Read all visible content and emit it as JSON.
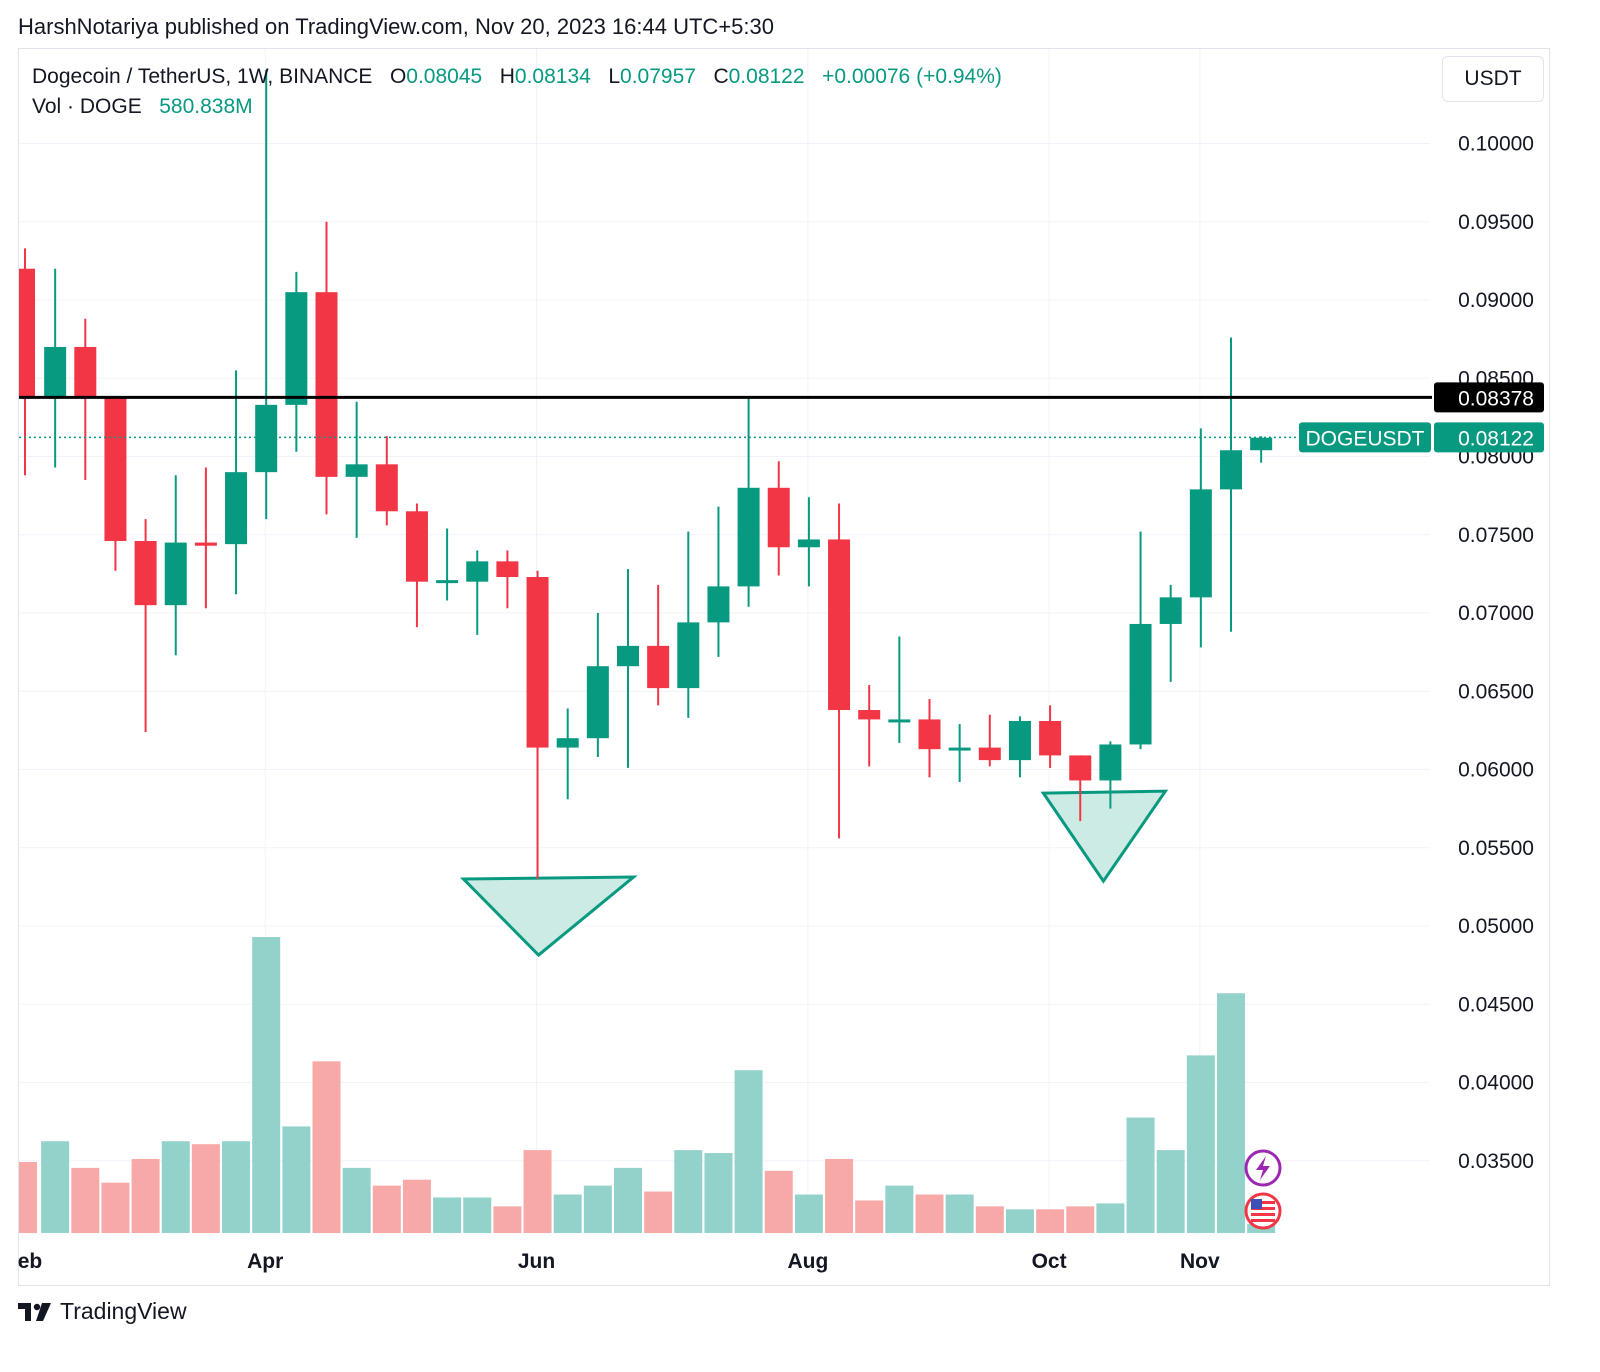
{
  "published_line": "HarshNotariya published on TradingView.com, Nov 20, 2023 16:44 UTC+5:30",
  "legend": {
    "symbol": "Dogecoin / TetherUS, 1W, BINANCE",
    "o_label": "O",
    "o_value": "0.08045",
    "h_label": "H",
    "h_value": "0.08134",
    "l_label": "L",
    "l_value": "0.07957",
    "c_label": "C",
    "c_value": "0.08122",
    "change": "+0.00076 (+0.94%)",
    "vol_label": "Vol · DOGE",
    "vol_value": "580.838M"
  },
  "currency_button": "USDT",
  "footer_brand": "TradingView",
  "colors": {
    "up": "#089981",
    "down": "#f23645",
    "vol_up": "#92d2cb",
    "vol_down": "#f7a9a7",
    "grid": "#f0f3fa",
    "triangle_fill": "#cdebe5",
    "triangle_stroke": "#089981",
    "resistance_line": "#000000"
  },
  "chart_data": {
    "type": "candlestick",
    "symbol": "DOGEUSDT",
    "interval": "1W",
    "y_axis_ticks": [
      "0.10000",
      "0.09500",
      "0.09000",
      "0.08500",
      "0.08000",
      "0.07500",
      "0.07000",
      "0.06500",
      "0.06000",
      "0.05500",
      "0.05000",
      "0.04500",
      "0.04000",
      "0.03500"
    ],
    "ylim": [
      0.0305,
      0.1047
    ],
    "x_month_labels": [
      {
        "label": "eb",
        "index": 0
      },
      {
        "label": "Apr",
        "index": 8
      },
      {
        "label": "Jun",
        "index": 17
      },
      {
        "label": "Aug",
        "index": 26
      },
      {
        "label": "Oct",
        "index": 34
      },
      {
        "label": "Nov",
        "index": 39
      }
    ],
    "candles": [
      {
        "o": 0.092,
        "h": 0.0933,
        "l": 0.0788,
        "c": 0.0838
      },
      {
        "o": 0.0838,
        "h": 0.092,
        "l": 0.0793,
        "c": 0.087
      },
      {
        "o": 0.087,
        "h": 0.0888,
        "l": 0.0785,
        "c": 0.0838
      },
      {
        "o": 0.0838,
        "h": 0.0832,
        "l": 0.0727,
        "c": 0.0746
      },
      {
        "o": 0.0746,
        "h": 0.076,
        "l": 0.0624,
        "c": 0.0705
      },
      {
        "o": 0.0705,
        "h": 0.0788,
        "l": 0.0673,
        "c": 0.0745
      },
      {
        "o": 0.0745,
        "h": 0.0793,
        "l": 0.0703,
        "c": 0.0743
      },
      {
        "o": 0.0744,
        "h": 0.0855,
        "l": 0.0712,
        "c": 0.079
      },
      {
        "o": 0.079,
        "h": 0.1047,
        "l": 0.076,
        "c": 0.0833
      },
      {
        "o": 0.0833,
        "h": 0.0918,
        "l": 0.0803,
        "c": 0.0905
      },
      {
        "o": 0.0905,
        "h": 0.095,
        "l": 0.0763,
        "c": 0.0787
      },
      {
        "o": 0.0787,
        "h": 0.0835,
        "l": 0.0748,
        "c": 0.0795
      },
      {
        "o": 0.0795,
        "h": 0.0813,
        "l": 0.0756,
        "c": 0.0765
      },
      {
        "o": 0.0765,
        "h": 0.077,
        "l": 0.0691,
        "c": 0.072
      },
      {
        "o": 0.072,
        "h": 0.0754,
        "l": 0.0708,
        "c": 0.0721
      },
      {
        "o": 0.072,
        "h": 0.074,
        "l": 0.0686,
        "c": 0.0733
      },
      {
        "o": 0.0733,
        "h": 0.074,
        "l": 0.0703,
        "c": 0.0723
      },
      {
        "o": 0.0723,
        "h": 0.0727,
        "l": 0.053,
        "c": 0.0614
      },
      {
        "o": 0.0614,
        "h": 0.0639,
        "l": 0.0581,
        "c": 0.062
      },
      {
        "o": 0.062,
        "h": 0.07,
        "l": 0.0608,
        "c": 0.0666
      },
      {
        "o": 0.0666,
        "h": 0.0728,
        "l": 0.0601,
        "c": 0.0679
      },
      {
        "o": 0.0679,
        "h": 0.0718,
        "l": 0.0641,
        "c": 0.0652
      },
      {
        "o": 0.0652,
        "h": 0.0752,
        "l": 0.0633,
        "c": 0.0694
      },
      {
        "o": 0.0694,
        "h": 0.0768,
        "l": 0.0672,
        "c": 0.0717
      },
      {
        "o": 0.0717,
        "h": 0.0838,
        "l": 0.0704,
        "c": 0.078
      },
      {
        "o": 0.078,
        "h": 0.0797,
        "l": 0.0724,
        "c": 0.0742
      },
      {
        "o": 0.0742,
        "h": 0.0774,
        "l": 0.0717,
        "c": 0.0747
      },
      {
        "o": 0.0747,
        "h": 0.077,
        "l": 0.0556,
        "c": 0.0638
      },
      {
        "o": 0.0638,
        "h": 0.0654,
        "l": 0.0602,
        "c": 0.0632
      },
      {
        "o": 0.0632,
        "h": 0.0685,
        "l": 0.0617,
        "c": 0.0632
      },
      {
        "o": 0.0632,
        "h": 0.0645,
        "l": 0.0595,
        "c": 0.0613
      },
      {
        "o": 0.0613,
        "h": 0.0629,
        "l": 0.0592,
        "c": 0.0614
      },
      {
        "o": 0.0614,
        "h": 0.0635,
        "l": 0.0602,
        "c": 0.0606
      },
      {
        "o": 0.0606,
        "h": 0.0634,
        "l": 0.0595,
        "c": 0.0631
      },
      {
        "o": 0.0631,
        "h": 0.0641,
        "l": 0.0601,
        "c": 0.0609
      },
      {
        "o": 0.0609,
        "h": 0.0605,
        "l": 0.0567,
        "c": 0.0593
      },
      {
        "o": 0.0593,
        "h": 0.0618,
        "l": 0.0575,
        "c": 0.0616
      },
      {
        "o": 0.0616,
        "h": 0.0752,
        "l": 0.0613,
        "c": 0.0693
      },
      {
        "o": 0.0693,
        "h": 0.0718,
        "l": 0.0656,
        "c": 0.071
      },
      {
        "o": 0.071,
        "h": 0.0818,
        "l": 0.0678,
        "c": 0.0779
      },
      {
        "o": 0.0779,
        "h": 0.0876,
        "l": 0.0688,
        "c": 0.0804
      },
      {
        "o": 0.0804,
        "h": 0.0813,
        "l": 0.0796,
        "c": 0.0812
      }
    ],
    "volume_relative": [
      0.24,
      0.31,
      0.22,
      0.17,
      0.25,
      0.31,
      0.3,
      0.31,
      1.0,
      0.36,
      0.58,
      0.22,
      0.16,
      0.18,
      0.12,
      0.12,
      0.09,
      0.28,
      0.13,
      0.16,
      0.22,
      0.14,
      0.28,
      0.27,
      0.55,
      0.21,
      0.13,
      0.25,
      0.11,
      0.16,
      0.13,
      0.13,
      0.09,
      0.08,
      0.08,
      0.09,
      0.1,
      0.39,
      0.28,
      0.6,
      0.81,
      0.03
    ],
    "resistance_level": {
      "value": 0.08378,
      "label": "0.08378"
    },
    "last_price": {
      "value": 0.08122,
      "label": "0.08122",
      "symbol_tag": "DOGEUSDT"
    },
    "annotations": [
      {
        "type": "triangle-down",
        "anchor_index": 17
      },
      {
        "type": "triangle-down",
        "anchor_index": 36
      }
    ]
  }
}
